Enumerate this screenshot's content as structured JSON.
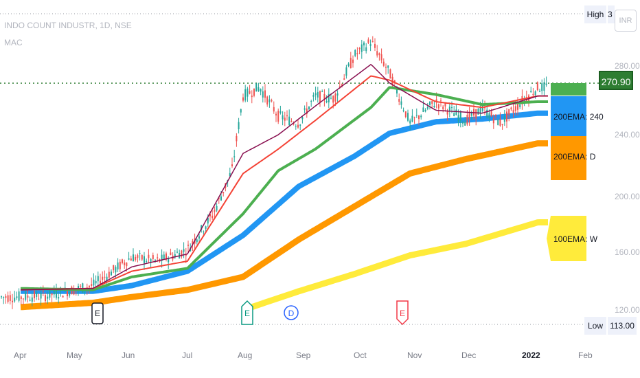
{
  "header": {
    "symbol_line": "INDO COUNT INDUSTR, 1D, NSE",
    "indicator": "MAC"
  },
  "badges": {
    "high_label": "High",
    "high_value": "3",
    "currency": "INR",
    "low_label": "Low",
    "low_value": "113.00",
    "last_price": "270.90"
  },
  "ema_labels": [
    {
      "text": "200EMA: 240",
      "color": "#2196f3"
    },
    {
      "text": "200EMA: D",
      "color": "#ff9800"
    },
    {
      "text": "100EMA: W",
      "color": "#ffeb3b"
    }
  ],
  "markers": [
    {
      "letter": "E",
      "color": "#131722"
    },
    {
      "letter": "E",
      "color": "#089981"
    },
    {
      "letter": "D",
      "color": "#2962ff"
    },
    {
      "letter": "E",
      "color": "#f23645"
    }
  ],
  "colors": {
    "up": "#26a69a",
    "down": "#ef5350",
    "ema_fast": "#880e4f",
    "ema_red": "#f44336",
    "ema_green": "#4caf50",
    "ema_blue": "#2196f3",
    "ema_orange": "#ff9800",
    "ema_yellow": "#ffeb3b",
    "price_line": "#2e7d32"
  },
  "chart_data": {
    "type": "line",
    "title": "INDO COUNT INDUSTR, 1D, NSE",
    "x_ticks": [
      "Apr",
      "May",
      "Jun",
      "Jul",
      "Aug",
      "Sep",
      "Oct",
      "Nov",
      "Dec",
      "2022",
      "Feb"
    ],
    "y_ticks": [
      "280.00",
      "240.00",
      "200.00",
      "160.00",
      "120.00"
    ],
    "ylim": [
      113,
      310
    ],
    "last_price": 270.9,
    "series": [
      {
        "name": "price",
        "x": [
          "Mar 25",
          "Apr 15",
          "May 10",
          "Jun 1",
          "Jun 15",
          "Jul 1",
          "Jul 15",
          "Jul 25",
          "Aug 1",
          "Aug 10",
          "Aug 20",
          "Sep 1",
          "Sep 10",
          "Sep 20",
          "Oct 1",
          "Oct 10",
          "Oct 20",
          "Nov 1",
          "Nov 15",
          "Dec 1",
          "Dec 10",
          "Dec 20",
          "Jan 1",
          "Jan 10"
        ],
        "values": [
          122,
          123,
          130,
          150,
          147,
          155,
          180,
          210,
          262,
          268,
          248,
          243,
          262,
          260,
          290,
          300,
          278,
          243,
          258,
          245,
          253,
          243,
          258,
          268
        ]
      },
      {
        "name": "",
        "x": [
          "Mar 25",
          "May 10",
          "Jun 1",
          "Jul 1",
          "Aug 1",
          "Aug 20",
          "Sep 10",
          "Oct 10",
          "Oct 20",
          "Nov 15",
          "Dec 10",
          "Jan 10"
        ],
        "values": [
          127,
          128,
          143,
          152,
          222,
          235,
          255,
          284,
          271,
          252,
          250,
          262
        ]
      },
      {
        "name": "",
        "x": [
          "Mar 25",
          "May 10",
          "Jun 1",
          "Jul 1",
          "Aug 1",
          "Aug 20",
          "Sep 10",
          "Oct 10",
          "Oct 20",
          "Nov 15",
          "Dec 10",
          "Jan 10"
        ],
        "values": [
          127,
          128,
          140,
          147,
          208,
          225,
          245,
          276,
          273,
          258,
          254,
          262
        ]
      },
      {
        "name": "",
        "x": [
          "Mar 25",
          "May 10",
          "Jun 1",
          "Jul 1",
          "Aug 1",
          "Aug 20",
          "Sep 10",
          "Oct 10",
          "Oct 20",
          "Nov 15",
          "Dec 10",
          "Jan 10"
        ],
        "values": [
          128,
          127,
          136,
          142,
          180,
          210,
          225,
          254,
          268,
          263,
          256,
          258
        ]
      },
      {
        "name": "200EMA: 240",
        "x": [
          "Mar 25",
          "May 10",
          "Jun 1",
          "Jul 1",
          "Aug 1",
          "Sep 1",
          "Oct 1",
          "Oct 20",
          "Nov 15",
          "Dec 10",
          "Jan 10"
        ],
        "values": [
          126,
          126,
          130,
          140,
          165,
          199,
          220,
          236,
          244,
          246,
          250
        ]
      },
      {
        "name": "200EMA: D",
        "x": [
          "Mar 25",
          "May 10",
          "Jun 1",
          "Jul 1",
          "Aug 1",
          "Sep 1",
          "Oct 1",
          "Nov 1",
          "Dec 1",
          "Jan 10"
        ],
        "values": [
          115,
          118,
          122,
          127,
          136,
          162,
          185,
          208,
          218,
          229
        ]
      },
      {
        "name": "100EMA: W",
        "x": [
          "Aug 1",
          "Sep 1",
          "Oct 1",
          "Nov 1",
          "Dec 1",
          "Jan 10"
        ],
        "values": [
          113,
          126,
          138,
          151,
          159,
          174
        ]
      }
    ]
  }
}
